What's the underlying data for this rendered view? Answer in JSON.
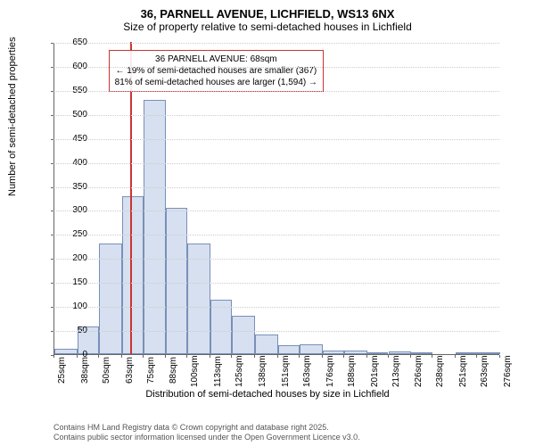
{
  "title": "36, PARNELL AVENUE, LICHFIELD, WS13 6NX",
  "subtitle": "Size of property relative to semi-detached houses in Lichfield",
  "y_axis_label": "Number of semi-detached properties",
  "x_axis_label": "Distribution of semi-detached houses by size in Lichfield",
  "chart": {
    "type": "histogram",
    "ylim": [
      0,
      650
    ],
    "ytick_step": 50,
    "xlim": [
      25,
      276
    ],
    "x_ticks": [
      25,
      38,
      50,
      63,
      75,
      88,
      100,
      113,
      125,
      138,
      151,
      163,
      176,
      188,
      201,
      213,
      226,
      238,
      251,
      263,
      276
    ],
    "x_tick_suffix": "sqm",
    "background_color": "#ffffff",
    "grid_color": "#cccccc",
    "bar_fill": "#d6e0f0",
    "bar_border": "#7a8fb8",
    "marker_color": "#cc3333",
    "marker_x": 68,
    "bars": [
      {
        "x0": 25,
        "x1": 38,
        "v": 12
      },
      {
        "x0": 38,
        "x1": 50,
        "v": 58
      },
      {
        "x0": 50,
        "x1": 63,
        "v": 230
      },
      {
        "x0": 63,
        "x1": 75,
        "v": 328
      },
      {
        "x0": 75,
        "x1": 88,
        "v": 530
      },
      {
        "x0": 88,
        "x1": 100,
        "v": 305
      },
      {
        "x0": 100,
        "x1": 113,
        "v": 230
      },
      {
        "x0": 113,
        "x1": 125,
        "v": 113
      },
      {
        "x0": 125,
        "x1": 138,
        "v": 80
      },
      {
        "x0": 138,
        "x1": 151,
        "v": 40
      },
      {
        "x0": 151,
        "x1": 163,
        "v": 18
      },
      {
        "x0": 163,
        "x1": 176,
        "v": 20
      },
      {
        "x0": 176,
        "x1": 188,
        "v": 8
      },
      {
        "x0": 188,
        "x1": 201,
        "v": 8
      },
      {
        "x0": 201,
        "x1": 213,
        "v": 3
      },
      {
        "x0": 213,
        "x1": 226,
        "v": 6
      },
      {
        "x0": 226,
        "x1": 238,
        "v": 2
      },
      {
        "x0": 238,
        "x1": 251,
        "v": 0
      },
      {
        "x0": 251,
        "x1": 263,
        "v": 2
      },
      {
        "x0": 263,
        "x1": 276,
        "v": 2
      }
    ],
    "annotation": {
      "line1": "36 PARNELL AVENUE: 68sqm",
      "line2": "← 19% of semi-detached houses are smaller (367)",
      "line3": "81% of semi-detached houses are larger (1,594) →"
    }
  },
  "footer": {
    "line1": "Contains HM Land Registry data © Crown copyright and database right 2025.",
    "line2": "Contains public sector information licensed under the Open Government Licence v3.0."
  }
}
